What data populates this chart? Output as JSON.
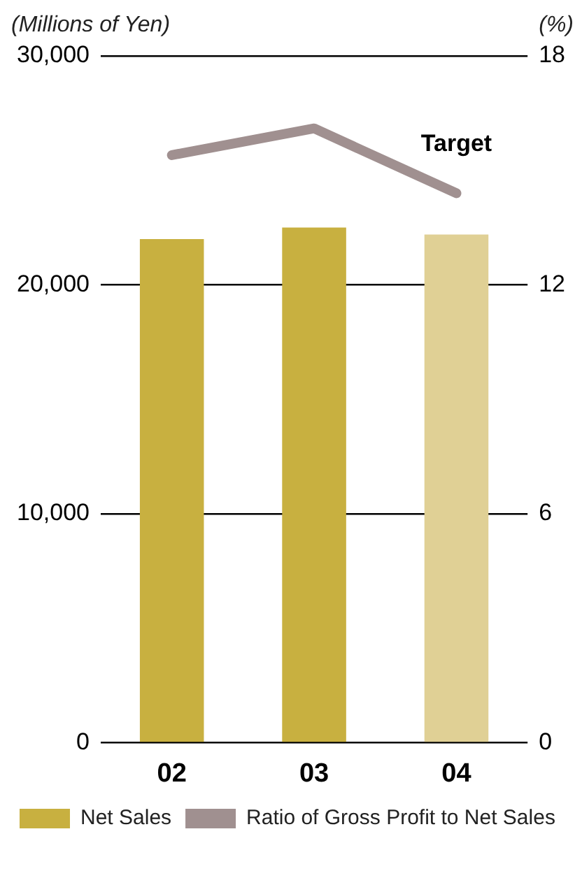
{
  "chart_data": {
    "type": "bar",
    "ylabel": "(Millions of Yen)",
    "y2label": "(%)",
    "categories": [
      "02",
      "03",
      "04"
    ],
    "series": [
      {
        "name": "Net Sales",
        "color": "#c8b040",
        "colors": [
          "#c8b040",
          "#c8b040",
          "#e0d095"
        ],
        "values": [
          22000,
          22500,
          22200
        ]
      },
      {
        "name": "Ratio of Gross Profit to Net Sales",
        "type": "line",
        "axis": "y2",
        "color": "#a09090",
        "values": [
          15.4,
          16.1,
          14.4
        ]
      }
    ],
    "ylim": [
      0,
      30000
    ],
    "yticks": [
      {
        "value": 0,
        "label": "0"
      },
      {
        "value": 10000,
        "label": "10,000"
      },
      {
        "value": 20000,
        "label": "20,000"
      },
      {
        "value": 30000,
        "label": "30,000"
      }
    ],
    "y2lim": [
      0,
      18
    ],
    "y2ticks": [
      0,
      6,
      12,
      18
    ],
    "annotations": [
      "Target"
    ],
    "grid": "y",
    "legend": "bottom",
    "marker": "none",
    "line_style": "solid"
  }
}
